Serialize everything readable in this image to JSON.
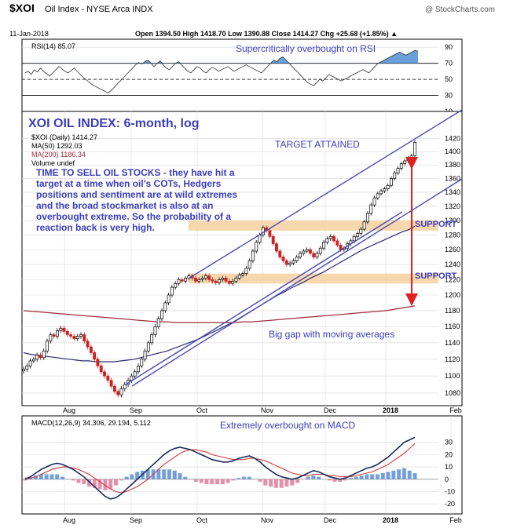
{
  "header": {
    "symbol": "$XOI",
    "name": "Oil Index - NYSE Arca INDX",
    "date": "11-Jan-2018",
    "watermark": "@ StockCharts.com",
    "ohlc": "Open 1394.50   High 1418.70   Low 1390.88   Close 1414.27   Chg +25.68 (+1.85%) ▲"
  },
  "colors": {
    "background": "#ffffff",
    "panel_border": "#000000",
    "grid": "#d9d9d9",
    "channel": "#4a4db3",
    "annotation_text": "#3b3dbd",
    "ma50": "#2b2b6b",
    "ma200": "#9b2d3e",
    "rsi_fill": "#4f8fd6",
    "macd_line": "#1a2a5a",
    "macd_signal": "#d43a3a",
    "histogram": "#5b8fd6",
    "histogram_neg": "#e07b9a",
    "support_band": "#f6d3a5",
    "red_arrow": "#e02020",
    "candle_up": "#ffffff",
    "candle_down": "#cc2222"
  },
  "chart_data": [
    {
      "type": "area",
      "panel": "RSI",
      "legend": "RSI(14) 85.07",
      "annotation": "Supercritically overbought on RSI",
      "ylim": [
        10,
        100
      ],
      "y_ticks": [
        "90",
        "70",
        "50",
        "30",
        "10"
      ],
      "reference_lines": [
        70,
        50,
        30
      ],
      "values": [
        58,
        60,
        56,
        62,
        59,
        64,
        60,
        57,
        54,
        58,
        62,
        66,
        63,
        60,
        58,
        61,
        64,
        60,
        56,
        52,
        49,
        46,
        43,
        41,
        39,
        37,
        35,
        33,
        36,
        40,
        44,
        48,
        52,
        56,
        60,
        64,
        68,
        71,
        69,
        72,
        74,
        70,
        66,
        70,
        73,
        68,
        64,
        62,
        66,
        70,
        72,
        68,
        64,
        60,
        58,
        62,
        66,
        64,
        60,
        58,
        62,
        65,
        63,
        60,
        62,
        64,
        66,
        63,
        60,
        62,
        64,
        66,
        68,
        66,
        64,
        62,
        60,
        58,
        62,
        66,
        70,
        74,
        72,
        76,
        78,
        74,
        70,
        66,
        62,
        58,
        54,
        50,
        46,
        44,
        42,
        46,
        50,
        48,
        52,
        56,
        54,
        52,
        50,
        48,
        50,
        52,
        54,
        56,
        58,
        60,
        62,
        60,
        58,
        62,
        66,
        70,
        72,
        74,
        76,
        78,
        80,
        82,
        84,
        82,
        80,
        82,
        84,
        86,
        85
      ]
    },
    {
      "type": "line",
      "panel": "Price",
      "title": "XOI OIL INDEX: 6-month, log",
      "legend": [
        "$XOI (Daily) 1414.27",
        "MA(50) 1292.03",
        "MA(200) 1186.34",
        "Volume undef"
      ],
      "scale": "log",
      "ylim": [
        1070,
        1430
      ],
      "y_ticks": [
        "1420",
        "1400",
        "1380",
        "1360",
        "1340",
        "1320",
        "1300",
        "1280",
        "1260",
        "1240",
        "1220",
        "1200",
        "1180",
        "1160",
        "1140",
        "1120",
        "1100",
        "1080"
      ],
      "x_ticks": [
        "Aug",
        "Sep",
        "Oct",
        "Nov",
        "Dec",
        "2018",
        "Feb"
      ],
      "series": [
        {
          "name": "$XOI",
          "values": [
            1108,
            1112,
            1118,
            1120,
            1125,
            1122,
            1130,
            1142,
            1150,
            1148,
            1155,
            1158,
            1154,
            1150,
            1148,
            1145,
            1148,
            1150,
            1142,
            1135,
            1128,
            1120,
            1112,
            1105,
            1100,
            1095,
            1088,
            1082,
            1078,
            1085,
            1090,
            1095,
            1100,
            1105,
            1112,
            1120,
            1130,
            1140,
            1150,
            1160,
            1170,
            1180,
            1190,
            1200,
            1210,
            1215,
            1220,
            1218,
            1222,
            1225,
            1222,
            1218,
            1220,
            1222,
            1225,
            1220,
            1218,
            1216,
            1220,
            1222,
            1218,
            1215,
            1218,
            1222,
            1226,
            1228,
            1235,
            1245,
            1258,
            1270,
            1280,
            1290,
            1286,
            1278,
            1268,
            1258,
            1250,
            1245,
            1240,
            1242,
            1245,
            1250,
            1255,
            1258,
            1260,
            1255,
            1250,
            1255,
            1262,
            1270,
            1275,
            1278,
            1272,
            1266,
            1260,
            1262,
            1268,
            1272,
            1278,
            1282,
            1288,
            1298,
            1310,
            1322,
            1332,
            1338,
            1342,
            1345,
            1350,
            1360,
            1368,
            1375,
            1382,
            1386,
            1390,
            1394,
            1414
          ]
        },
        {
          "name": "MA(50)",
          "values": [
            1128,
            1126,
            1125,
            1124,
            1123,
            1122,
            1121,
            1120,
            1119,
            1118,
            1118,
            1117,
            1117,
            1117,
            1117,
            1118,
            1119,
            1120,
            1122,
            1124,
            1126,
            1128,
            1130,
            1133,
            1136,
            1139,
            1142,
            1145,
            1149,
            1153,
            1157,
            1161,
            1165,
            1170,
            1175,
            1180,
            1185,
            1190,
            1195,
            1200,
            1204,
            1209,
            1213,
            1217,
            1222,
            1226,
            1230,
            1235,
            1240,
            1245,
            1250,
            1255,
            1260,
            1264,
            1268,
            1272,
            1276,
            1280,
            1284,
            1287,
            1292
          ]
        },
        {
          "name": "MA(200)",
          "values": [
            1180,
            1179,
            1178,
            1177,
            1176,
            1175,
            1174,
            1173,
            1172,
            1171,
            1170,
            1169,
            1168,
            1167,
            1166,
            1166,
            1165,
            1165,
            1165,
            1165,
            1165,
            1165,
            1165,
            1166,
            1166,
            1167,
            1168,
            1169,
            1170,
            1171,
            1172,
            1173,
            1174,
            1175,
            1176,
            1177,
            1178,
            1179,
            1180,
            1182,
            1184,
            1186
          ]
        }
      ],
      "annotations": {
        "target": "TARGET ATTAINED",
        "time_to_sell": "TIME TO SELL OIL STOCKS - they have hit a target at a time when oil's COTs, Hedgers positions and sentiment are at wild extremes and the broad stockmarket is also at an overbought extreme. So the probability of a reaction back is very high.",
        "support_1": "SUPPORT",
        "support_2": "SUPPORT",
        "gap": "Big gap with moving averages"
      },
      "support_bands": [
        [
          1286,
          1300
        ],
        [
          1215,
          1228
        ]
      ]
    },
    {
      "type": "line",
      "panel": "MACD",
      "legend": "MACD(12,26,9) 34.306, 29.194, 5.112",
      "annotation": "Extremely overbought on MACD",
      "ylim": [
        -25,
        40
      ],
      "y_ticks": [
        "30",
        "20",
        "10",
        "0",
        "-10",
        "-20"
      ],
      "x_ticks": [
        "Aug",
        "Sep",
        "Oct",
        "Nov",
        "Dec",
        "2018",
        "Feb"
      ],
      "series": [
        {
          "name": "MACD",
          "values": [
            0,
            2,
            5,
            8,
            10,
            12,
            13,
            12,
            10,
            8,
            5,
            2,
            -2,
            -6,
            -10,
            -14,
            -16,
            -15,
            -12,
            -8,
            -4,
            0,
            4,
            8,
            12,
            16,
            20,
            23,
            25,
            26,
            25,
            24,
            22,
            20,
            18,
            16,
            15,
            14,
            14,
            15,
            17,
            18,
            19,
            17,
            14,
            10,
            7,
            4,
            2,
            1,
            0,
            1,
            3,
            5,
            7,
            6,
            4,
            2,
            1,
            0,
            1,
            3,
            5,
            7,
            9,
            10,
            12,
            15,
            18,
            22,
            26,
            30,
            32,
            34
          ]
        },
        {
          "name": "Signal",
          "values": [
            1,
            1,
            2,
            4,
            6,
            8,
            9,
            10,
            10,
            9,
            8,
            6,
            4,
            1,
            -2,
            -5,
            -8,
            -10,
            -11,
            -10,
            -8,
            -6,
            -3,
            0,
            4,
            8,
            12,
            15,
            18,
            21,
            23,
            24,
            24,
            23,
            22,
            20,
            19,
            18,
            17,
            16,
            16,
            16,
            17,
            17,
            16,
            15,
            13,
            11,
            9,
            7,
            5,
            4,
            3,
            3,
            4,
            4,
            4,
            3,
            3,
            2,
            2,
            2,
            3,
            4,
            5,
            6,
            8,
            10,
            12,
            15,
            18,
            21,
            25,
            29
          ]
        }
      ]
    }
  ]
}
